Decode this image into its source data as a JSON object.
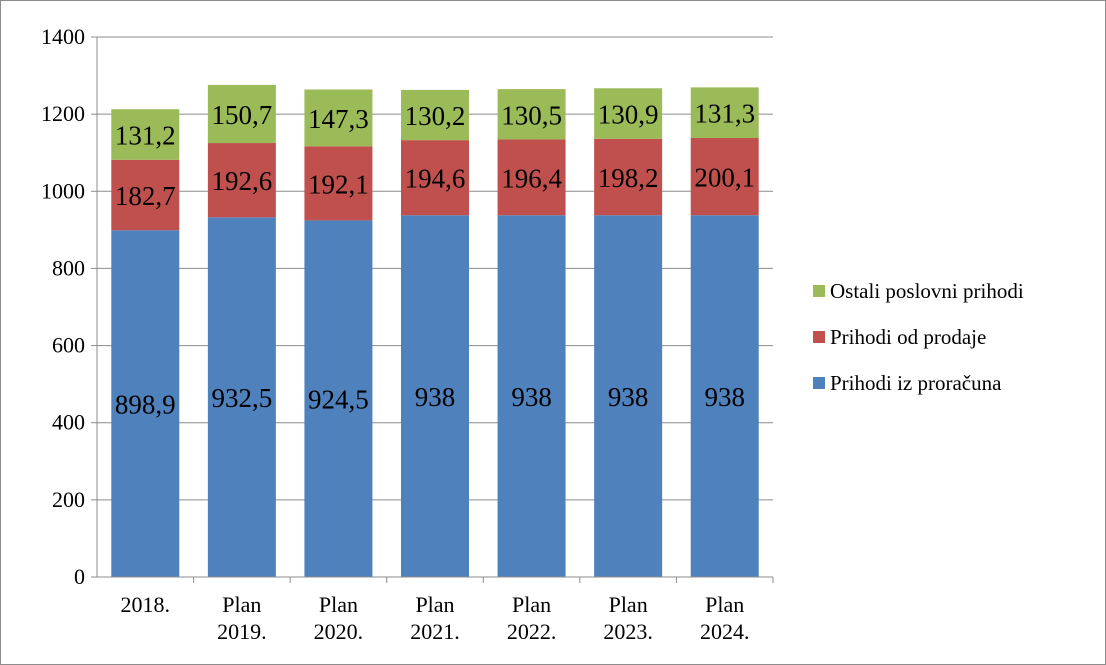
{
  "chart_data": {
    "type": "bar",
    "stacked": true,
    "categories": [
      [
        "2018."
      ],
      [
        "Plan",
        "2019."
      ],
      [
        "Plan",
        "2020."
      ],
      [
        "Plan",
        "2021."
      ],
      [
        "Plan",
        "2022."
      ],
      [
        "Plan",
        "2023."
      ],
      [
        "Plan",
        "2024."
      ]
    ],
    "series": [
      {
        "name": "Prihodi iz proračuna",
        "color": "#4f81bd",
        "values": [
          898.9,
          932.5,
          924.5,
          938,
          938,
          938,
          938
        ],
        "labels": [
          "898,9",
          "932,5",
          "924,5",
          "938",
          "938",
          "938",
          "938"
        ]
      },
      {
        "name": "Prihodi od prodaje",
        "color": "#c0504d",
        "values": [
          182.7,
          192.6,
          192.1,
          194.6,
          196.4,
          198.2,
          200.1
        ],
        "labels": [
          "182,7",
          "192,6",
          "192,1",
          "194,6",
          "196,4",
          "198,2",
          "200,1"
        ]
      },
      {
        "name": "Ostali poslovni prihodi",
        "color": "#9bbb59",
        "values": [
          131.2,
          150.7,
          147.3,
          130.2,
          130.5,
          130.9,
          131.3
        ],
        "labels": [
          "131,2",
          "150,7",
          "147,3",
          "130,2",
          "130,5",
          "130,9",
          "131,3"
        ]
      }
    ],
    "ylim": [
      0,
      1400
    ],
    "yticks": [
      0,
      200,
      400,
      600,
      800,
      1000,
      1200,
      1400
    ],
    "grid": true,
    "legend_position": "right"
  }
}
